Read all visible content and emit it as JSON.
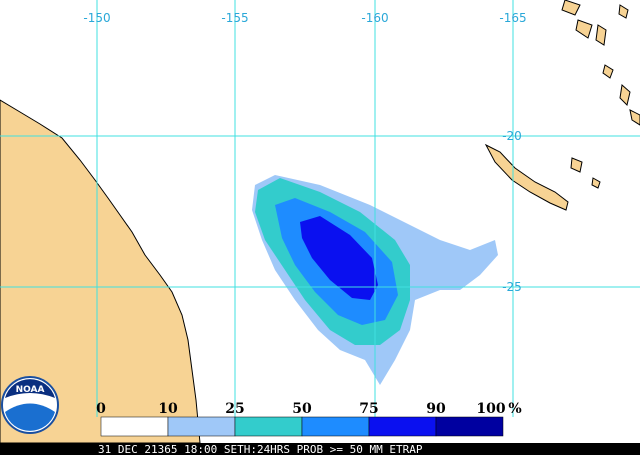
{
  "grid": {
    "longitudes": [
      "-150",
      "-155",
      "-160",
      "-165"
    ],
    "latitudes": [
      "-20",
      "-25"
    ]
  },
  "logo": "NOAA",
  "legend": {
    "labels": [
      "0",
      "10",
      "25",
      "50",
      "75",
      "90",
      "100"
    ],
    "unit": "%",
    "colors": [
      "#ffffff",
      "#9fc8f8",
      "#33cccc",
      "#1e8cff",
      "#0a10f0",
      "#0000a0"
    ]
  },
  "footer": "31 DEC 21365 18:00 SETH:24HRS PROB >= 50 MM ETRAP"
}
